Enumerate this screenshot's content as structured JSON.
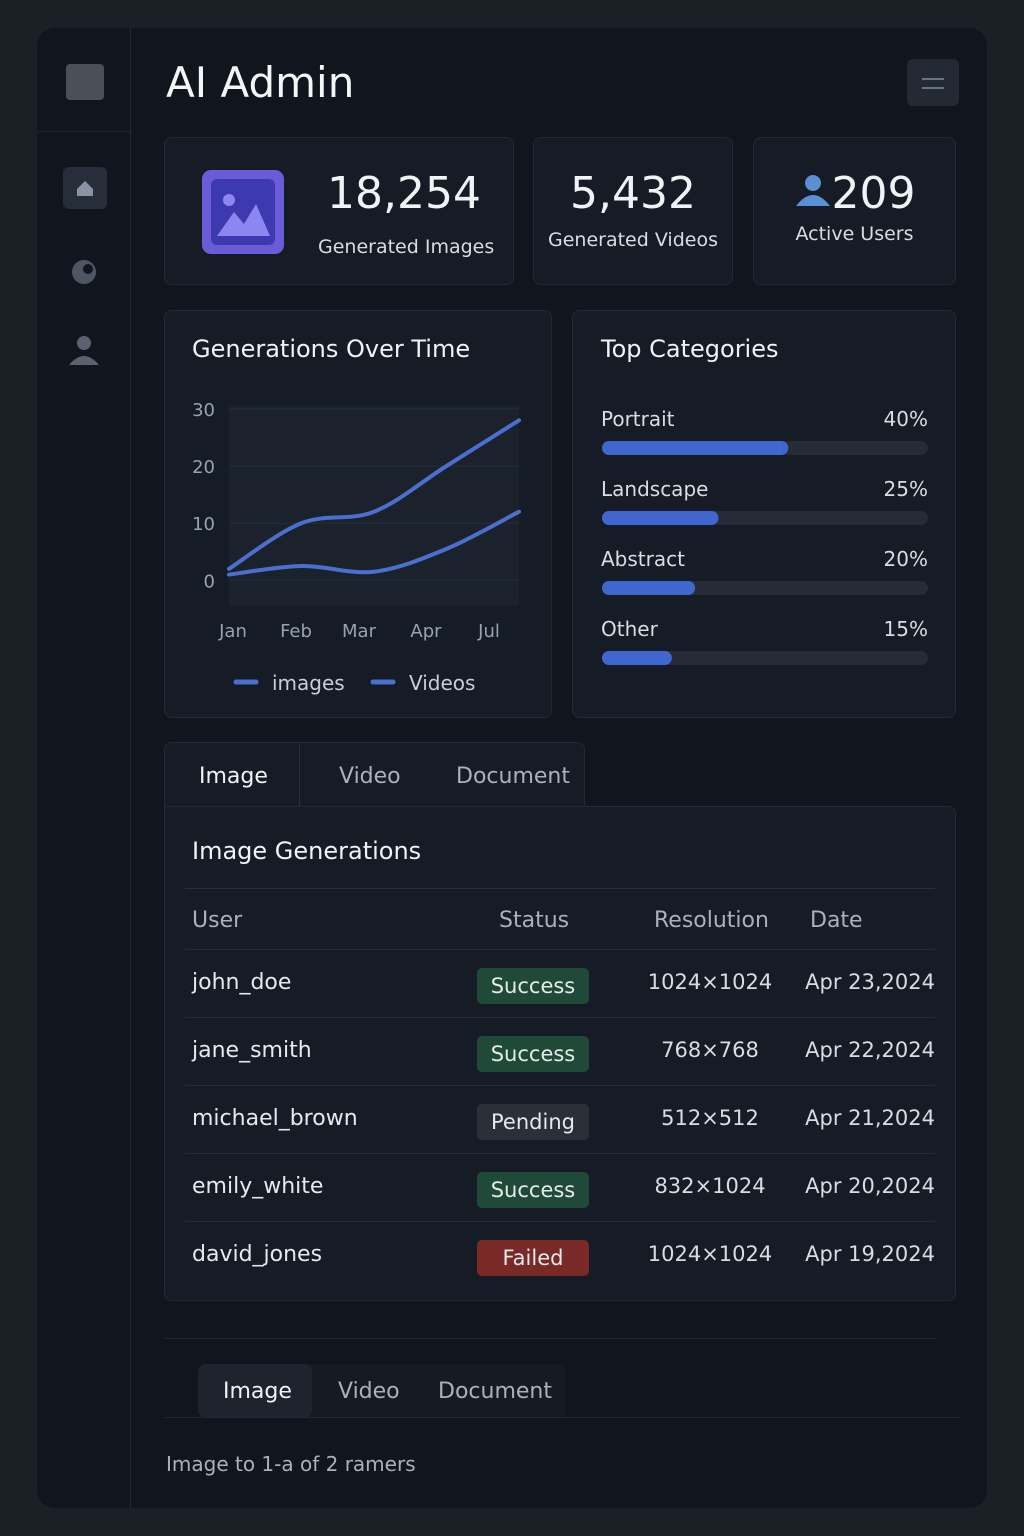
{
  "header": {
    "title": "AI Admin"
  },
  "stats": [
    {
      "value": "18,254",
      "label": "Generated Images"
    },
    {
      "value": "5,432",
      "label": "Generated Videos"
    },
    {
      "value": "209",
      "label": "Active Users"
    }
  ],
  "line_chart": {
    "type": "line",
    "title": "Generations Over Time",
    "categories": [
      "Jan",
      "Feb",
      "Mar",
      "Apr",
      "Jul"
    ],
    "series": [
      {
        "name": "images",
        "color": "#4a6fd0",
        "values": [
          2,
          10,
          12,
          20,
          28
        ]
      },
      {
        "name": "Videos",
        "color": "#4a6fd0",
        "values": [
          1,
          2.5,
          1.5,
          5.5,
          12
        ]
      }
    ],
    "ylim": [
      -4.5,
      30.5
    ],
    "yticks": [
      0,
      10,
      20,
      30
    ],
    "grid": true
  },
  "categories_chart": {
    "type": "bar",
    "title": "Top Categories",
    "categories": [
      "Portrait",
      "Landscape",
      "Abstract",
      "Other"
    ],
    "values": [
      40,
      25,
      20,
      15
    ],
    "value_labels": [
      "40%",
      "25%",
      "20%",
      "15%"
    ],
    "xlim": [
      0,
      70
    ],
    "color": "#3f67cf"
  },
  "tabs": [
    "Image",
    "Video",
    "Document"
  ],
  "table": {
    "title": "Image Generations",
    "columns": [
      "User",
      "Status",
      "Resolution",
      "Date"
    ],
    "rows": [
      [
        "john_doe",
        "Success",
        "1024×1024",
        "Apr 23,2024"
      ],
      [
        "jane_smith",
        "Success",
        "768×768",
        "Apr 22,2024"
      ],
      [
        "michael_brown",
        "Pending",
        "512×512",
        "Apr 21,2024"
      ],
      [
        "emily_white",
        "Success",
        "832×1024",
        "Apr 20,2024"
      ],
      [
        "david_jones",
        "Failed",
        "1024×1024",
        "Apr 19,2024"
      ]
    ],
    "status_colors": [
      "#1f4a37",
      "#1f4a37",
      "#2a2f38",
      "#1f4a37",
      "#7a2a26"
    ]
  },
  "bottom_tabs": [
    "Image",
    "Video",
    "Document"
  ],
  "footer": "Image to 1-a of 2 ramers"
}
